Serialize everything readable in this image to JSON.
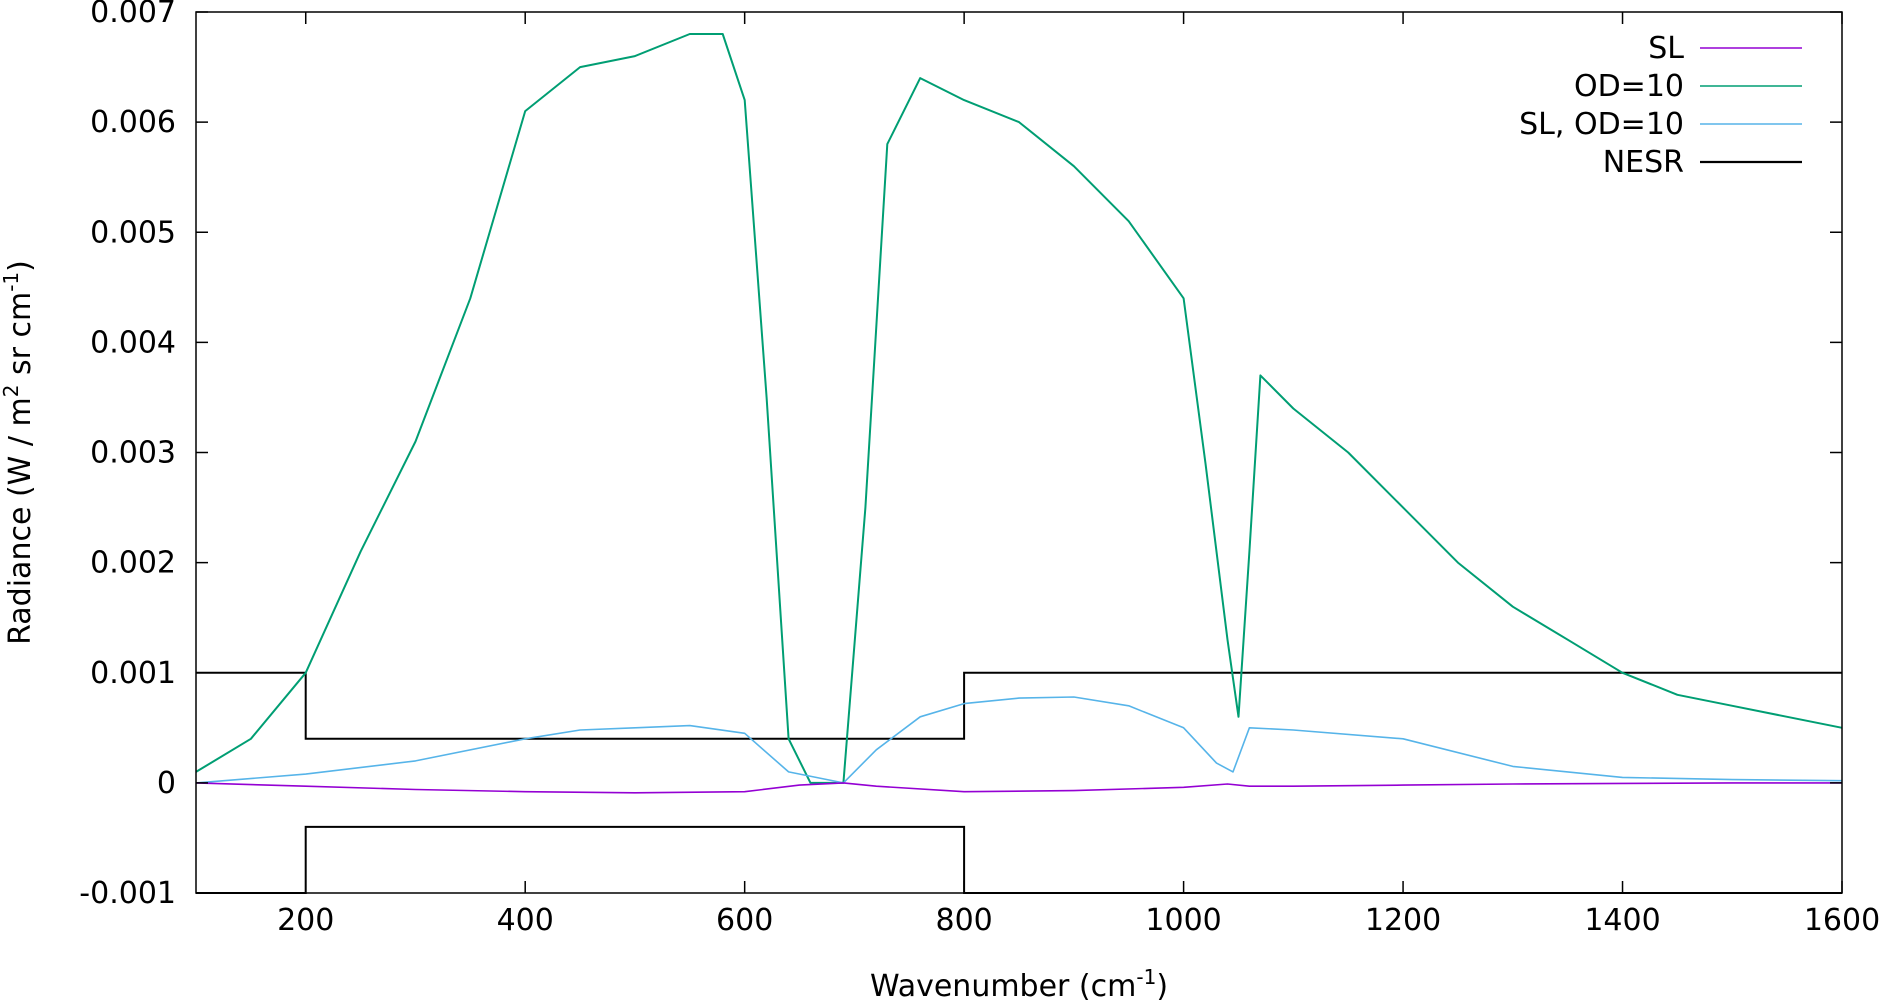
{
  "chart_data": {
    "type": "line",
    "xlabel": "Wavenumber (cm",
    "xlabel_sup": "-1",
    "xlabel_end": ")",
    "ylabel_parts": [
      "Radiance (W / m",
      "2",
      " sr cm",
      "-1",
      ")"
    ],
    "xlim": [
      100,
      1600
    ],
    "ylim": [
      -0.001,
      0.007
    ],
    "x_ticks": [
      200,
      400,
      600,
      800,
      1000,
      1200,
      1400,
      1600
    ],
    "y_ticks": [
      -0.001,
      0,
      0.001,
      0.002,
      0.003,
      0.004,
      0.005,
      0.006,
      0.007
    ],
    "x_tick_labels": [
      "200",
      "400",
      "600",
      "800",
      "1000",
      "1200",
      "1400",
      "1600"
    ],
    "y_tick_labels": [
      "-0.001",
      "0",
      "0.001",
      "0.002",
      "0.003",
      "0.004",
      "0.005",
      "0.006",
      "0.007"
    ],
    "grid": false,
    "legend_position": "top-right",
    "series": [
      {
        "name": "SL",
        "color": "#9400d3",
        "x": [
          100,
          200,
          300,
          400,
          500,
          600,
          650,
          690,
          720,
          800,
          900,
          1000,
          1040,
          1060,
          1100,
          1200,
          1300,
          1400,
          1500,
          1600
        ],
        "y": [
          0.0,
          -3e-05,
          -6e-05,
          -8e-05,
          -9e-05,
          -8e-05,
          -2e-05,
          0.0,
          -3e-05,
          -8e-05,
          -7e-05,
          -4e-05,
          -1e-05,
          -3e-05,
          -3e-05,
          -2e-05,
          -1e-05,
          -5e-06,
          0.0,
          0.0
        ]
      },
      {
        "name": "OD=10",
        "color": "#009e73",
        "x": [
          100,
          150,
          200,
          250,
          300,
          350,
          400,
          450,
          500,
          550,
          580,
          600,
          620,
          640,
          660,
          690,
          710,
          730,
          760,
          800,
          850,
          900,
          950,
          1000,
          1020,
          1040,
          1050,
          1060,
          1070,
          1100,
          1150,
          1200,
          1250,
          1300,
          1350,
          1400,
          1450,
          1500,
          1550,
          1600
        ],
        "y": [
          0.0001,
          0.0004,
          0.001,
          0.0021,
          0.0031,
          0.0044,
          0.0061,
          0.0065,
          0.0066,
          0.0068,
          0.0068,
          0.0062,
          0.0035,
          0.0004,
          0.0,
          0.0,
          0.0025,
          0.0058,
          0.0064,
          0.0062,
          0.006,
          0.0056,
          0.0051,
          0.0044,
          0.0029,
          0.0013,
          0.0006,
          0.0021,
          0.0037,
          0.0034,
          0.003,
          0.0025,
          0.002,
          0.0016,
          0.0013,
          0.001,
          0.0008,
          0.0007,
          0.0006,
          0.0005
        ]
      },
      {
        "name": "SL, OD=10",
        "color": "#56b4e9",
        "x": [
          100,
          200,
          300,
          400,
          450,
          500,
          550,
          600,
          640,
          690,
          720,
          760,
          800,
          850,
          900,
          950,
          1000,
          1030,
          1045,
          1060,
          1100,
          1200,
          1300,
          1400,
          1500,
          1600
        ],
        "y": [
          0.0,
          8e-05,
          0.0002,
          0.0004,
          0.00048,
          0.0005,
          0.00052,
          0.00045,
          0.0001,
          0.0,
          0.0003,
          0.0006,
          0.00072,
          0.00077,
          0.00078,
          0.0007,
          0.0005,
          0.00018,
          0.0001,
          0.0005,
          0.00048,
          0.0004,
          0.00015,
          5e-05,
          3e-05,
          2e-05
        ]
      },
      {
        "name": "NESR",
        "color": "#000000",
        "upper": {
          "x": [
            100,
            200,
            200,
            800,
            800,
            1600
          ],
          "y": [
            0.001,
            0.001,
            0.0004,
            0.0004,
            0.001,
            0.001
          ]
        },
        "lower": {
          "x": [
            100,
            200,
            200,
            800,
            800,
            1600
          ],
          "y": [
            -0.001,
            -0.001,
            -0.0004,
            -0.0004,
            -0.001,
            -0.001
          ]
        }
      }
    ]
  }
}
